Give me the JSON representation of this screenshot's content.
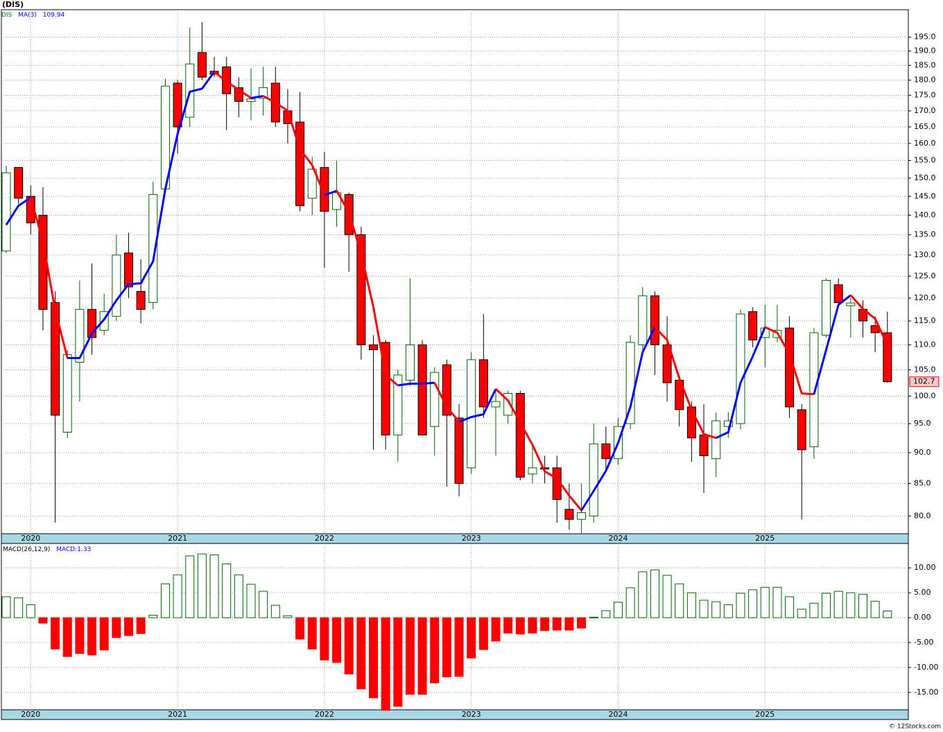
{
  "chart_data": [
    {
      "type": "candlestick",
      "title": "(DIS)",
      "symbol": "DIS",
      "symbol_color": "#008000",
      "categories": [
        null,
        null,
        "2020",
        null,
        null,
        null,
        null,
        null,
        null,
        null,
        null,
        null,
        null,
        null,
        "2021",
        null,
        null,
        null,
        null,
        null,
        null,
        null,
        null,
        null,
        null,
        null,
        "2022",
        null,
        null,
        null,
        null,
        null,
        null,
        null,
        null,
        null,
        null,
        null,
        "2023",
        null,
        null,
        null,
        null,
        null,
        null,
        null,
        null,
        null,
        null,
        null,
        "2024",
        null,
        null,
        null,
        null,
        null,
        null,
        null,
        null,
        null,
        null,
        null,
        "2025",
        null,
        null,
        null,
        null,
        null,
        null,
        null,
        null,
        null,
        null
      ],
      "open": [
        131,
        153,
        145,
        140,
        119,
        93.5,
        106.5,
        117.5,
        113,
        116,
        130.5,
        121.5,
        119,
        147,
        179,
        168,
        189.5,
        183,
        184.5,
        177.5,
        173,
        174,
        179,
        170,
        166.5,
        144.5,
        153,
        141.5,
        145.5,
        135,
        110,
        110.5,
        93,
        103,
        110,
        94.5,
        106,
        96,
        87.5,
        107,
        98,
        96.5,
        100.5,
        86.5,
        87.5,
        87.5,
        81,
        79.5,
        80,
        91.5,
        89,
        95,
        110,
        120.5,
        110,
        103,
        98,
        93,
        89,
        94.5,
        95,
        117,
        111.5,
        111.5,
        113.5,
        97.5,
        91,
        112,
        123,
        118.3,
        117.5,
        114,
        112.5
      ],
      "high": [
        153.5,
        153,
        148,
        147.5,
        121.5,
        109,
        124,
        128,
        121,
        135,
        135.5,
        129,
        149,
        180.5,
        180,
        198.5,
        200.5,
        188,
        188,
        181,
        184,
        184.5,
        184.5,
        177,
        176,
        156,
        157.5,
        155,
        146,
        137,
        112,
        111,
        105,
        124.5,
        111,
        105.5,
        107,
        98.5,
        108.5,
        116.5,
        101,
        101,
        101,
        91.5,
        89.5,
        89.5,
        85,
        85,
        95,
        94.5,
        96,
        112,
        122.5,
        121.5,
        116,
        104,
        99,
        98.5,
        97,
        97,
        117.5,
        118,
        118.5,
        118.5,
        116,
        98.5,
        113.5,
        124.5,
        124.5,
        120,
        119.5,
        116,
        117
      ],
      "low": [
        130.5,
        143,
        135,
        113,
        79,
        92.5,
        99,
        108,
        112,
        115,
        120,
        114.5,
        117.5,
        146,
        157,
        165,
        180,
        181,
        164,
        168,
        167,
        168.5,
        165,
        160,
        141,
        140,
        127,
        137,
        126,
        107,
        90.5,
        90.5,
        88.5,
        102,
        93,
        89.5,
        84.5,
        83,
        86.5,
        96,
        89.5,
        95,
        85.5,
        85,
        85,
        79,
        78,
        77.5,
        79,
        87,
        88,
        94,
        109,
        104,
        99,
        94.5,
        88.5,
        83.5,
        86,
        92.5,
        94,
        109.5,
        105.5,
        110.5,
        96,
        79.5,
        89,
        111.5,
        118,
        111.5,
        111.5,
        108.5,
        102.5
      ],
      "close": [
        151.5,
        144.5,
        138,
        117.5,
        96.5,
        108,
        117.5,
        111.5,
        117,
        130,
        122.5,
        117.5,
        145.5,
        178,
        165,
        185.5,
        181,
        182,
        175.5,
        173,
        173.8,
        177.5,
        166.5,
        166,
        142.5,
        152.5,
        141,
        146,
        135,
        110,
        109,
        93,
        104,
        110,
        93,
        104.5,
        96.5,
        85,
        107,
        98,
        99,
        100.5,
        86,
        87.5,
        87.3,
        82.5,
        79.5,
        80.5,
        91.5,
        89,
        94.5,
        110.5,
        120.5,
        110,
        102.5,
        97.5,
        92.5,
        89.5,
        95.5,
        95.5,
        116.5,
        111,
        113.5,
        113,
        98,
        90.5,
        112.5,
        124,
        119,
        118.9,
        115,
        112.5,
        102.7
      ],
      "up_color": "#ffffff",
      "up_edge": "#006400",
      "down_color": "#ff0000",
      "down_edge": "#000000",
      "series": [
        {
          "name": "MA(3)",
          "up_color": "#0000ff",
          "down_color": "#ff0000",
          "values": [
            137.5,
            142.5,
            144.67,
            133.33,
            117.33,
            107.33,
            107.33,
            112.33,
            115.33,
            119.5,
            123.17,
            123.33,
            128.5,
            147,
            162.83,
            176.17,
            177.17,
            182.83,
            179.5,
            176.83,
            174.1,
            174.77,
            172.6,
            170,
            158.33,
            153.67,
            145.33,
            146.5,
            140.67,
            130.33,
            118,
            104,
            102,
            102.33,
            102.33,
            102.5,
            98,
            95.33,
            96.17,
            96.67,
            101.33,
            99.17,
            95.17,
            91.33,
            86.93,
            85.77,
            83.1,
            80.83,
            83.83,
            87,
            91.67,
            98,
            108.5,
            113.67,
            111,
            103.33,
            97.5,
            93.17,
            92.5,
            93.5,
            102.5,
            107.67,
            113.67,
            112.5,
            108.17,
            100.5,
            100.33,
            109,
            118.5,
            120.63,
            117.63,
            115.47,
            109.94
          ]
        }
      ],
      "log_scale": true,
      "ylim": [
        77.4,
        205.2
      ],
      "yticks": [
        {
          "value": 80,
          "label": "80.0"
        },
        {
          "value": 85,
          "label": "85.0"
        },
        {
          "value": 90,
          "label": "90.0"
        },
        {
          "value": 95,
          "label": "95.0"
        },
        {
          "value": 100,
          "label": "100.0"
        },
        {
          "value": 105,
          "label": "105.0"
        },
        {
          "value": 110,
          "label": "110.0"
        },
        {
          "value": 115,
          "label": "115.0"
        },
        {
          "value": 120,
          "label": "120.0"
        },
        {
          "value": 125,
          "label": "125.0"
        },
        {
          "value": 130,
          "label": "130.0"
        },
        {
          "value": 135,
          "label": "135.0"
        },
        {
          "value": 140,
          "label": "140.0"
        },
        {
          "value": 145,
          "label": "145.0"
        },
        {
          "value": 150,
          "label": "150.0"
        },
        {
          "value": 155,
          "label": "155.0"
        },
        {
          "value": 160,
          "label": "160.0"
        },
        {
          "value": 165,
          "label": "165.0"
        },
        {
          "value": 170,
          "label": "170.0"
        },
        {
          "value": 175,
          "label": "175.0"
        },
        {
          "value": 180,
          "label": "180.0"
        },
        {
          "value": 185,
          "label": "185.0"
        },
        {
          "value": 190,
          "label": "190.0"
        },
        {
          "value": 195,
          "label": "195.0"
        }
      ],
      "grid": true
    },
    {
      "type": "bar",
      "title": "MACD(26,12,9)",
      "series": [
        {
          "name": "MACD:",
          "pos_edge": "#006400",
          "pos_color": "#ffffff",
          "neg_color": "#ff0000",
          "label_color": "#0000ff",
          "values": [
            4.2,
            4.0,
            2.6,
            -1.1,
            -6.3,
            -7.8,
            -7.2,
            -7.5,
            -6.5,
            -4.0,
            -3.6,
            -3.2,
            0.5,
            6.8,
            8.6,
            12.4,
            12.8,
            12.6,
            10.8,
            8.6,
            6.7,
            5.3,
            2.5,
            0.4,
            -4.3,
            -6.3,
            -8.5,
            -9.0,
            -11.3,
            -14.3,
            -16.1,
            -18.6,
            -17.8,
            -15.4,
            -15.4,
            -13.1,
            -11.9,
            -11.8,
            -8.1,
            -6.4,
            -4.7,
            -3.1,
            -3.3,
            -3.1,
            -2.6,
            -2.5,
            -2.5,
            -2.1,
            0.1,
            1.4,
            3.1,
            6.0,
            9.2,
            9.6,
            8.5,
            6.8,
            5.0,
            3.5,
            3.2,
            2.6,
            4.9,
            5.6,
            6.1,
            6.1,
            4.2,
            1.7,
            2.9,
            4.9,
            5.3,
            5.0,
            4.7,
            3.3,
            1.33
          ]
        }
      ],
      "ylim": [
        -18.5,
        14.9
      ],
      "yticks": [
        {
          "value": -15,
          "label": "-15.00"
        },
        {
          "value": -10,
          "label": "-10.00"
        },
        {
          "value": -5,
          "label": "-5.00"
        },
        {
          "value": 0,
          "label": "0.00"
        },
        {
          "value": 5,
          "label": "5.00"
        },
        {
          "value": 10,
          "label": "10.00"
        }
      ],
      "grid": true
    }
  ],
  "footer": "© 12Stocks.com"
}
